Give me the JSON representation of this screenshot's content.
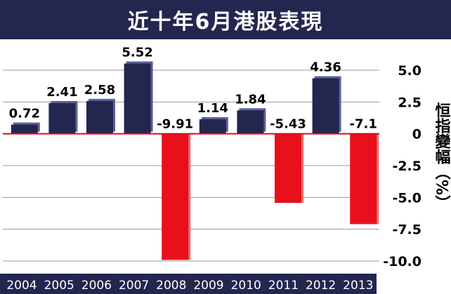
{
  "title": "近十年6月港股表現",
  "chart_data": {
    "type": "bar",
    "title": "近十年6月港股表現",
    "xlabel": "",
    "ylabel": "恒指變幅（%）",
    "categories": [
      "2004",
      "2005",
      "2006",
      "2007",
      "2008",
      "2009",
      "2010",
      "2011",
      "2012",
      "2013"
    ],
    "values": [
      0.72,
      2.41,
      2.58,
      5.52,
      -9.91,
      1.14,
      1.84,
      -5.43,
      4.36,
      -7.1
    ],
    "value_labels": [
      "0.72",
      "2.41",
      "2.58",
      "5.52",
      "-9.91",
      "1.14",
      "1.84",
      "-5.43",
      "4.36",
      "-7.1"
    ],
    "ylim": [
      -10.0,
      5.0
    ],
    "yticks": [
      5.0,
      2.5,
      0,
      -2.5,
      -5.0,
      -7.5,
      -10.0
    ],
    "ytick_labels": [
      "5.0",
      "2.5",
      "0",
      "-2.5",
      "-5.0",
      "-7.5",
      "-10.0"
    ],
    "grid": true,
    "colors": {
      "positive": "#23264f",
      "negative": "#e8101a",
      "zero_line": "#d0101a",
      "grid": "#9a9a9a",
      "axis_bar": "#23264f"
    }
  }
}
